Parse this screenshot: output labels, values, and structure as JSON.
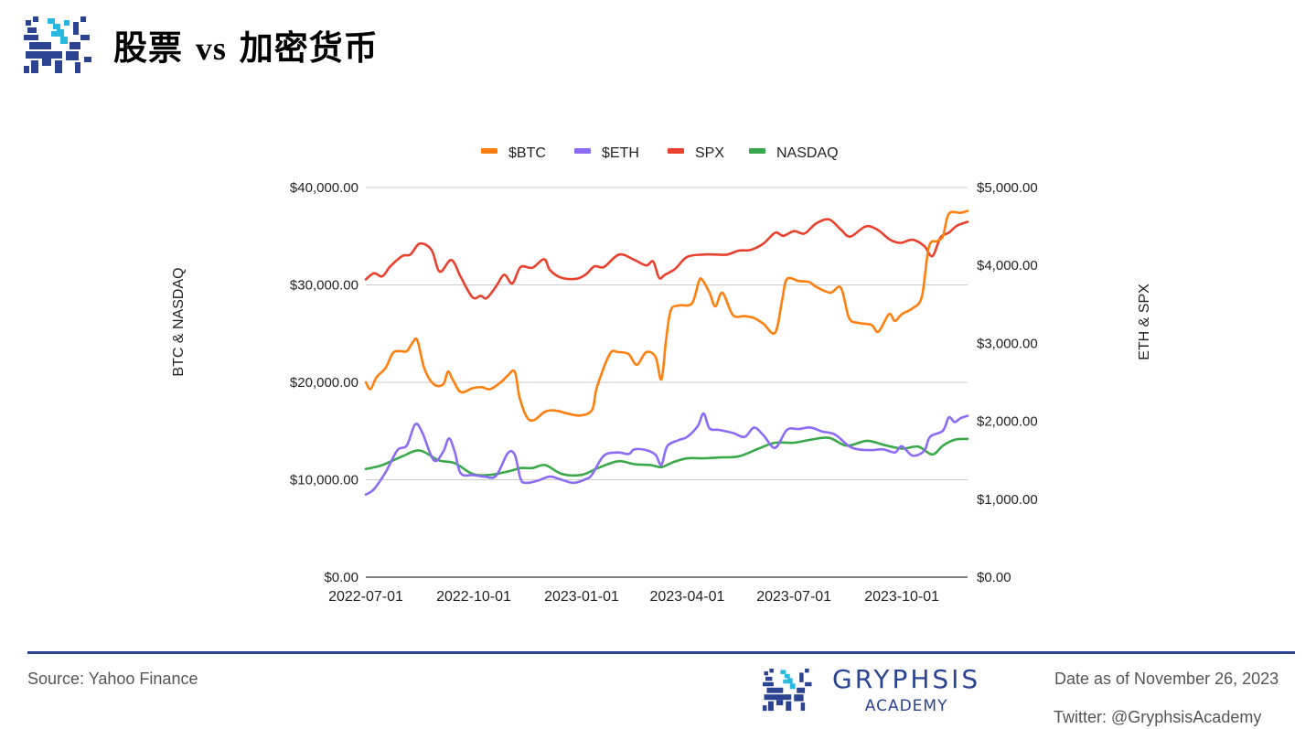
{
  "header": {
    "title_part1": "股票 ",
    "title_vs": "vs",
    "title_part2": " 加密货币"
  },
  "footer": {
    "source": "Source: Yahoo Finance",
    "brand_name": "GRYPHSIS",
    "brand_sub": "ACADEMY",
    "date": "Date as of November 26, 2023",
    "twitter": "Twitter: @GryphsisAcademy"
  },
  "colors": {
    "brand": "#2b4391",
    "logo_accent": "#29b8e0"
  },
  "chart_data": {
    "type": "line",
    "legend_position": "top",
    "grid": true,
    "x_ticks": [
      "2022-07-01",
      "2022-10-01",
      "2023-01-01",
      "2023-04-01",
      "2023-07-01",
      "2023-10-01"
    ],
    "x_range": [
      "2022-07-01",
      "2023-11-26"
    ],
    "y_left": {
      "label": "BTC & NASDAQ",
      "range": [
        0,
        40000
      ],
      "ticks": [
        "$0.00",
        "$10,000.00",
        "$20,000.00",
        "$30,000.00",
        "$40,000.00"
      ]
    },
    "y_right": {
      "label": "ETH & SPX",
      "range": [
        0,
        5000
      ],
      "ticks": [
        "$0.00",
        "$1,000.00",
        "$2,000.00",
        "$3,000.00",
        "$4,000.00",
        "$5,000.00"
      ]
    },
    "series": [
      {
        "name": "$BTC",
        "axis": "left",
        "color": "#ff7f0e",
        "x": [
          "2022-07-01",
          "2022-07-05",
          "2022-07-10",
          "2022-07-18",
          "2022-07-24",
          "2022-07-30",
          "2022-08-05",
          "2022-08-10",
          "2022-08-14",
          "2022-08-20",
          "2022-08-28",
          "2022-09-05",
          "2022-09-09",
          "2022-09-13",
          "2022-09-20",
          "2022-09-30",
          "2022-10-08",
          "2022-10-15",
          "2022-10-25",
          "2022-10-30",
          "2022-11-05",
          "2022-11-09",
          "2022-11-15",
          "2022-11-21",
          "2022-12-01",
          "2022-12-10",
          "2022-12-20",
          "2022-12-31",
          "2023-01-10",
          "2023-01-14",
          "2023-01-25",
          "2023-02-01",
          "2023-02-10",
          "2023-02-17",
          "2023-02-25",
          "2023-03-05",
          "2023-03-10",
          "2023-03-14",
          "2023-03-18",
          "2023-03-25",
          "2023-04-05",
          "2023-04-11",
          "2023-04-14",
          "2023-04-20",
          "2023-04-25",
          "2023-05-01",
          "2023-05-10",
          "2023-05-20",
          "2023-05-28",
          "2023-06-05",
          "2023-06-15",
          "2023-06-21",
          "2023-06-25",
          "2023-07-05",
          "2023-07-14",
          "2023-07-20",
          "2023-08-01",
          "2023-08-10",
          "2023-08-17",
          "2023-08-25",
          "2023-09-05",
          "2023-09-11",
          "2023-09-20",
          "2023-09-25",
          "2023-10-01",
          "2023-10-10",
          "2023-10-18",
          "2023-10-24",
          "2023-10-31",
          "2023-11-05",
          "2023-11-10",
          "2023-11-20",
          "2023-11-26"
        ],
        "values": [
          20000,
          19300,
          20500,
          21500,
          23000,
          23200,
          23200,
          24100,
          24300,
          21400,
          19800,
          19800,
          21100,
          20300,
          19000,
          19400,
          19500,
          19300,
          20100,
          20700,
          21100,
          18500,
          16500,
          16100,
          17000,
          17100,
          16800,
          16600,
          17200,
          19500,
          22900,
          23100,
          22900,
          21800,
          23100,
          22600,
          20300,
          24400,
          27400,
          27900,
          28100,
          30400,
          30500,
          29200,
          27800,
          29200,
          26900,
          26800,
          26600,
          26000,
          25100,
          28500,
          30600,
          30400,
          30300,
          29800,
          29200,
          29700,
          26600,
          26100,
          25900,
          25200,
          27000,
          26300,
          27000,
          27600,
          28800,
          33900,
          34500,
          35000,
          37300,
          37400,
          37600
        ]
      },
      {
        "name": "$ETH",
        "axis": "right",
        "color": "#8c6bf5",
        "x": [
          "2022-07-01",
          "2022-07-08",
          "2022-07-18",
          "2022-07-28",
          "2022-08-05",
          "2022-08-12",
          "2022-08-18",
          "2022-08-28",
          "2022-09-05",
          "2022-09-10",
          "2022-09-15",
          "2022-09-20",
          "2022-10-01",
          "2022-10-10",
          "2022-10-20",
          "2022-10-30",
          "2022-11-05",
          "2022-11-10",
          "2022-11-15",
          "2022-11-25",
          "2022-12-05",
          "2022-12-15",
          "2022-12-25",
          "2023-01-05",
          "2023-01-10",
          "2023-01-20",
          "2023-02-01",
          "2023-02-10",
          "2023-02-15",
          "2023-02-25",
          "2023-03-05",
          "2023-03-10",
          "2023-03-15",
          "2023-03-25",
          "2023-04-01",
          "2023-04-10",
          "2023-04-15",
          "2023-04-20",
          "2023-04-28",
          "2023-05-10",
          "2023-05-20",
          "2023-05-28",
          "2023-06-05",
          "2023-06-15",
          "2023-06-25",
          "2023-07-05",
          "2023-07-15",
          "2023-07-25",
          "2023-08-05",
          "2023-08-17",
          "2023-08-25",
          "2023-09-05",
          "2023-09-15",
          "2023-09-25",
          "2023-10-01",
          "2023-10-10",
          "2023-10-20",
          "2023-10-25",
          "2023-11-05",
          "2023-11-10",
          "2023-11-15",
          "2023-11-20",
          "2023-11-26"
        ],
        "values": [
          1060,
          1130,
          1350,
          1630,
          1690,
          1960,
          1860,
          1500,
          1610,
          1780,
          1600,
          1330,
          1310,
          1290,
          1300,
          1590,
          1570,
          1260,
          1210,
          1240,
          1290,
          1250,
          1210,
          1260,
          1320,
          1560,
          1600,
          1580,
          1640,
          1630,
          1570,
          1440,
          1680,
          1760,
          1800,
          1940,
          2100,
          1910,
          1890,
          1850,
          1800,
          1920,
          1820,
          1660,
          1890,
          1900,
          1920,
          1870,
          1830,
          1680,
          1640,
          1630,
          1640,
          1600,
          1680,
          1560,
          1620,
          1800,
          1880,
          2050,
          1990,
          2040,
          2070
        ]
      },
      {
        "name": "SPX",
        "axis": "right",
        "color": "#e8412e",
        "x": [
          "2022-07-01",
          "2022-07-08",
          "2022-07-15",
          "2022-07-22",
          "2022-08-01",
          "2022-08-08",
          "2022-08-16",
          "2022-08-26",
          "2022-09-02",
          "2022-09-12",
          "2022-09-20",
          "2022-09-30",
          "2022-10-07",
          "2022-10-12",
          "2022-10-20",
          "2022-10-27",
          "2022-11-03",
          "2022-11-10",
          "2022-11-20",
          "2022-11-30",
          "2022-12-05",
          "2022-12-15",
          "2022-12-28",
          "2023-01-05",
          "2023-01-12",
          "2023-01-20",
          "2023-02-02",
          "2023-02-15",
          "2023-02-25",
          "2023-03-03",
          "2023-03-08",
          "2023-03-13",
          "2023-03-22",
          "2023-04-01",
          "2023-04-15",
          "2023-04-25",
          "2023-05-05",
          "2023-05-15",
          "2023-05-25",
          "2023-06-05",
          "2023-06-15",
          "2023-06-22",
          "2023-07-01",
          "2023-07-10",
          "2023-07-20",
          "2023-07-31",
          "2023-08-10",
          "2023-08-18",
          "2023-08-31",
          "2023-09-10",
          "2023-09-21",
          "2023-09-30",
          "2023-10-10",
          "2023-10-20",
          "2023-10-27",
          "2023-11-03",
          "2023-11-10",
          "2023-11-17",
          "2023-11-26"
        ],
        "values": [
          3820,
          3900,
          3860,
          3990,
          4120,
          4140,
          4280,
          4200,
          3920,
          4070,
          3850,
          3590,
          3610,
          3580,
          3730,
          3880,
          3770,
          3980,
          3970,
          4080,
          3940,
          3840,
          3830,
          3890,
          3990,
          3980,
          4140,
          4070,
          4000,
          4050,
          3840,
          3880,
          3960,
          4110,
          4140,
          4140,
          4140,
          4190,
          4200,
          4280,
          4420,
          4380,
          4440,
          4410,
          4540,
          4590,
          4460,
          4370,
          4500,
          4460,
          4330,
          4290,
          4330,
          4250,
          4120,
          4360,
          4420,
          4510,
          4560
        ]
      },
      {
        "name": "NASDAQ",
        "axis": "left",
        "color": "#3aa84a",
        "x": [
          "2022-07-01",
          "2022-07-15",
          "2022-08-01",
          "2022-08-16",
          "2022-09-01",
          "2022-09-15",
          "2022-09-30",
          "2022-10-15",
          "2022-11-01",
          "2022-11-10",
          "2022-11-20",
          "2022-12-01",
          "2022-12-15",
          "2023-01-01",
          "2023-01-15",
          "2023-02-01",
          "2023-02-15",
          "2023-03-01",
          "2023-03-10",
          "2023-03-20",
          "2023-04-01",
          "2023-04-15",
          "2023-05-01",
          "2023-05-15",
          "2023-06-01",
          "2023-06-15",
          "2023-07-01",
          "2023-07-15",
          "2023-07-31",
          "2023-08-15",
          "2023-09-01",
          "2023-09-15",
          "2023-10-01",
          "2023-10-15",
          "2023-10-27",
          "2023-11-05",
          "2023-11-15",
          "2023-11-26"
        ],
        "values": [
          11100,
          11500,
          12400,
          13000,
          12000,
          11700,
          10600,
          10500,
          10900,
          11200,
          11200,
          11500,
          10600,
          10500,
          11200,
          11900,
          11600,
          11500,
          11300,
          11800,
          12200,
          12200,
          12300,
          12400,
          13200,
          13800,
          13800,
          14100,
          14300,
          13500,
          14000,
          13600,
          13200,
          13400,
          12600,
          13500,
          14100,
          14200
        ]
      }
    ]
  }
}
